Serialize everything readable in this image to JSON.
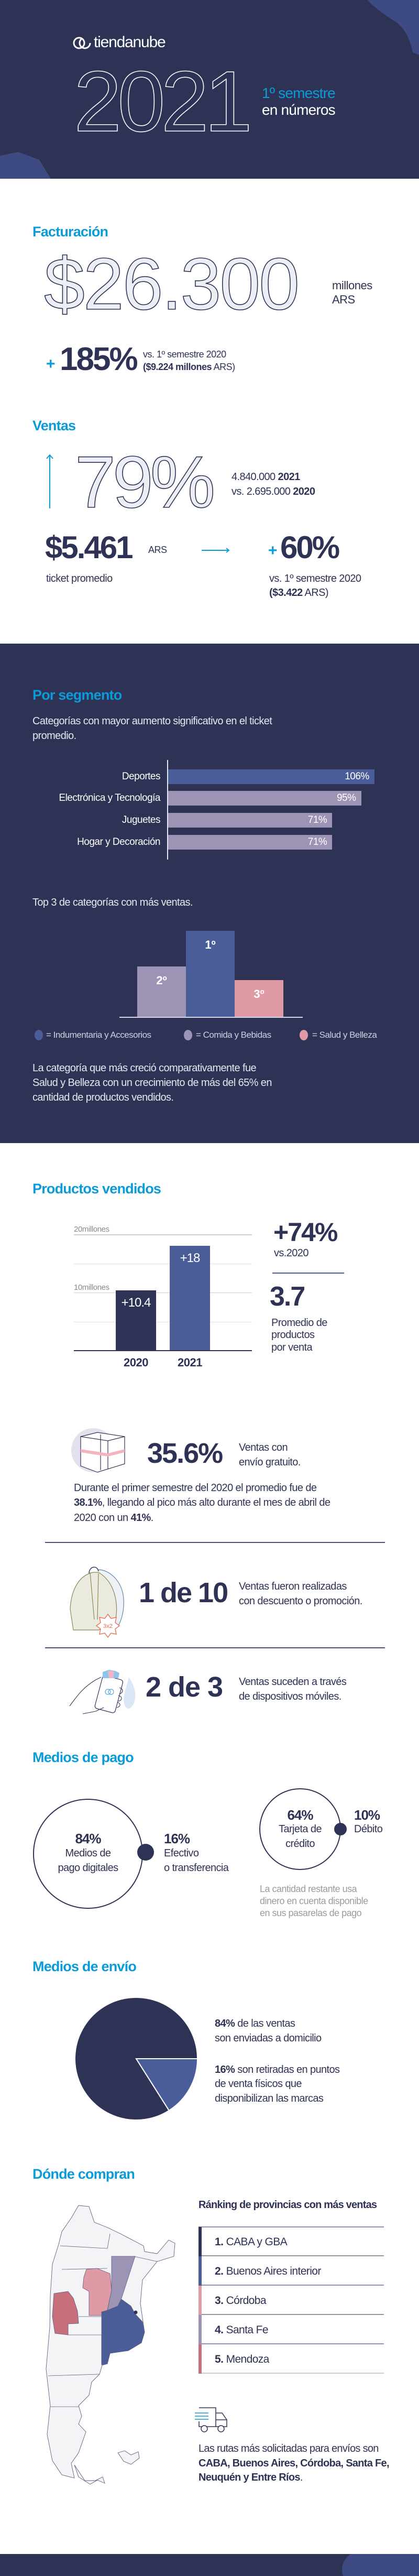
{
  "header": {
    "brand": "tiendanube",
    "year": "2021",
    "subtitle_line1": "1º semestre",
    "subtitle_line2": "en números"
  },
  "facturacion": {
    "title": "Facturación",
    "amount": "$26.300",
    "unit_line1": "millones",
    "unit_line2": "ARS",
    "growth_sign": "+",
    "growth": "185%",
    "compare_line1": "vs. 1º semestre 2020",
    "compare_prev_bold": "($9.224 millones",
    "compare_prev_rest": " ARS)"
  },
  "ventas": {
    "title": "Ventas",
    "growth": "79%",
    "count_2021": "4.840.000 ",
    "label_2021": "2021",
    "count_2020": "vs. 2.695.000 ",
    "label_2020": "2020",
    "ticket": "$5.461",
    "ticket_unit": "ARS",
    "ticket_label": "ticket promedio",
    "ticket_growth_sign": "+",
    "ticket_growth": "60%",
    "ticket_compare_line1": "vs. 1º semestre 2020",
    "ticket_prev_bold": "($3.422",
    "ticket_prev_rest": " ARS)"
  },
  "segmento": {
    "title": "Por segmento",
    "conclusion": "La categoría que más creció comparativamente fue Salud y Belleza con un crecimiento de más del 65% en cantidad de productos vendidos."
  },
  "productos": {
    "title": "Productos vendidos",
    "growth": "+74%",
    "growth_compare": "vs.2020",
    "avg": "3.7",
    "avg_label_lines": [
      "Promedio de",
      "productos",
      "por venta"
    ],
    "free_shipping_pct": "35.6%",
    "free_shipping_lines": [
      "Ventas con",
      "envío gratuito."
    ],
    "free_shipping_note": {
      "line1": "Durante el primer semestre del 2020 el promedio fue de",
      "line2_bold": "38.1%",
      "line2_rest": ", llegando al pico más alto durante el mes de abril de",
      "line3_start": "2020 con un ",
      "line3_bold": "41%",
      "line3_end": "."
    },
    "promo_ratio": "1 de 10",
    "promo_lines": [
      "Ventas fueron realizadas",
      "con descuento o promoción."
    ],
    "promo_badge": "3x2",
    "mobile_ratio": "2 de 3",
    "mobile_lines": [
      "Ventas suceden a través",
      "de dispositivos móviles."
    ]
  },
  "pago": {
    "title": "Medios de pago",
    "digital_pct": "84%",
    "digital_lines": [
      "Medios de",
      "pago digitales"
    ],
    "cash_pct": "16%",
    "cash_lines": [
      "Efectivo",
      "o transferencia"
    ],
    "credit_pct": "64%",
    "credit_lines": [
      "Tarjeta de",
      "crédito"
    ],
    "debit_pct": "10%",
    "debit_label": "Débito",
    "note_lines": [
      "La cantidad restante usa",
      "dinero en cuenta disponible",
      "en sus pasarelas de pago"
    ]
  },
  "envio": {
    "title": "Medios de envío"
  },
  "donde": {
    "title": "Dónde compran",
    "ranking_title": "Ránking de provincias con más ventas",
    "ranking": [
      {
        "rank": "1.",
        "name": " CABA y GBA",
        "color": "#2e3356"
      },
      {
        "rank": "2.",
        "name": " Buenos Aires interior",
        "color": "#4a5d99"
      },
      {
        "rank": "3.",
        "name": " Córdoba",
        "color": "#e09aa5"
      },
      {
        "rank": "4.",
        "name": " Santa Fe",
        "color": "#9d93b5"
      },
      {
        "rank": "5.",
        "name": " Mendoza",
        "color": "#c7707c"
      }
    ],
    "routes_intro": "Las rutas más solicitadas para envíos son ",
    "routes_bold": "CABA, Buenos Aires, Córdoba, Santa Fe, Neuquén y Entre Ríos",
    "routes_end": "."
  },
  "colors": {
    "navy": "#2e3356",
    "accent": "#0a9bd8",
    "blue": "#4a5d99",
    "lavender": "#9d93b5",
    "pink": "#e09aa5",
    "rose": "#c7707c"
  },
  "chart_data": [
    {
      "type": "bar",
      "orientation": "horizontal",
      "title": "Categorías con mayor aumento significativo en el ticket promedio.",
      "categories": [
        "Deportes",
        "Electrónica y Tecnología",
        "Juguetes",
        "Hogar y Decoración"
      ],
      "values": [
        106,
        95,
        71,
        71
      ],
      "value_labels": [
        "106%",
        "95%",
        "71%",
        "71%"
      ],
      "unit": "%",
      "colors": [
        "#4a5d99",
        "#9d93b5",
        "#9d93b5",
        "#9d93b5"
      ]
    },
    {
      "type": "bar",
      "title": "Top 3 de categorías con más ventas.",
      "bars": [
        {
          "rank": "2º",
          "legend_index": 1,
          "relative_value": 0.59
        },
        {
          "rank": "1º",
          "legend_index": 0,
          "relative_value": 1.0
        },
        {
          "rank": "3º",
          "legend_index": 2,
          "relative_value": 0.43
        }
      ],
      "legend": [
        {
          "label": "= Indumentaria y Accesorios",
          "color": "#4a5d99"
        },
        {
          "label": "= Comida y Bebidas",
          "color": "#9d93b5"
        },
        {
          "label": "= Salud y Belleza",
          "color": "#e09aa5"
        }
      ],
      "legend_position": "bottom"
    },
    {
      "type": "bar",
      "categories": [
        "2020",
        "2021"
      ],
      "values": [
        10.4,
        18
      ],
      "value_labels": [
        "+10.4",
        "+18"
      ],
      "ylabel": "millones",
      "yticks": [
        {
          "value": 20,
          "label": "20millones"
        },
        {
          "value": 10,
          "label": "10millones"
        }
      ],
      "ylim": [
        0,
        20
      ],
      "grid": true,
      "colors": [
        "#2e3356",
        "#4a5d99"
      ]
    },
    {
      "type": "pie",
      "slices": [
        {
          "value": 84,
          "pct_label": "84%",
          "lines": [
            " de las ventas",
            "son enviadas a domicilio"
          ],
          "color": "#2e3356"
        },
        {
          "value": 16,
          "pct_label": "16%",
          "lines": [
            " son retiradas en puntos",
            "de venta físicos que",
            "disponibilizan las marcas"
          ],
          "color": "#4a5d99"
        }
      ]
    }
  ]
}
